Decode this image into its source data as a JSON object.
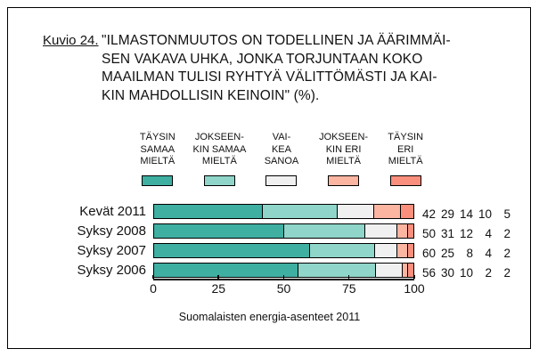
{
  "figure": {
    "label": "Kuvio 24.",
    "title": "\"ILMASTONMUUTOS ON TODELLINEN JA ÄÄRIMMÄI-\nSEN VAKAVA UHKA, JONKA TORJUNTAAN KOKO\nMAAILMAN TULISI RYHTYÄ VÄLITTÖMÄSTI JA KAI-\nKIN MAHDOLLISIN KEINOIN\" (%).",
    "footer": "Suomalaisten energia-asenteet 2011"
  },
  "colors": {
    "frame_border": "#000000",
    "text": "#111111",
    "background": "#ffffff"
  },
  "chart_data": {
    "type": "bar",
    "orientation": "horizontal-stacked",
    "title": "\"ILMASTONMUUTOS ON TODELLINEN JA ÄÄRIMMÄISEN VAKAVA UHKA, JONKA TORJUNTAAN KOKO MAAILMAN TULISI RYHTYÄ VÄLITTÖMÄSTI JA KAIKIN MAHDOLLISIN KEINOIN\" (%).",
    "categories": [
      "Kevät 2011",
      "Syksy 2008",
      "Syksy 2007",
      "Syksy 2006"
    ],
    "series": [
      {
        "name": "TÄYSIN SAMAA MIELTÄ",
        "legend_label": "TÄYSIN\nSAMAA\nMIELTÄ",
        "color": "#3FAFA2",
        "values": [
          42,
          50,
          60,
          56
        ]
      },
      {
        "name": "JOKSEENKIN SAMAA MIELTÄ",
        "legend_label": "JOKSEEN-\nKIN SAMAA\nMIELTÄ",
        "color": "#8FD5C9",
        "values": [
          29,
          31,
          25,
          30
        ]
      },
      {
        "name": "VAIKEA SANOA",
        "legend_label": "VAI-\nKEA\nSANOA",
        "color": "#F0F0F0",
        "values": [
          14,
          12,
          8,
          10
        ]
      },
      {
        "name": "JOKSEENKIN ERI MIELTÄ",
        "legend_label": "JOKSEEN-\nKIN ERI\nMIELTÄ",
        "color": "#FBB5A1",
        "values": [
          10,
          4,
          4,
          2
        ]
      },
      {
        "name": "TÄYSIN ERI MIELTÄ",
        "legend_label": "TÄYSIN\nERI\nMIELTÄ",
        "color": "#FB8F7D",
        "values": [
          5,
          2,
          2,
          2
        ]
      }
    ],
    "row_value_labels": [
      [
        42,
        29,
        14,
        10,
        5
      ],
      [
        50,
        31,
        12,
        4,
        2
      ],
      [
        60,
        25,
        8,
        4,
        2
      ],
      [
        56,
        30,
        10,
        2,
        2
      ]
    ],
    "xticks": [
      0,
      25,
      50,
      75,
      100
    ],
    "xlim": [
      0,
      100
    ],
    "xlabel": "",
    "ylabel": "",
    "grid": false,
    "legend_position": "top"
  }
}
